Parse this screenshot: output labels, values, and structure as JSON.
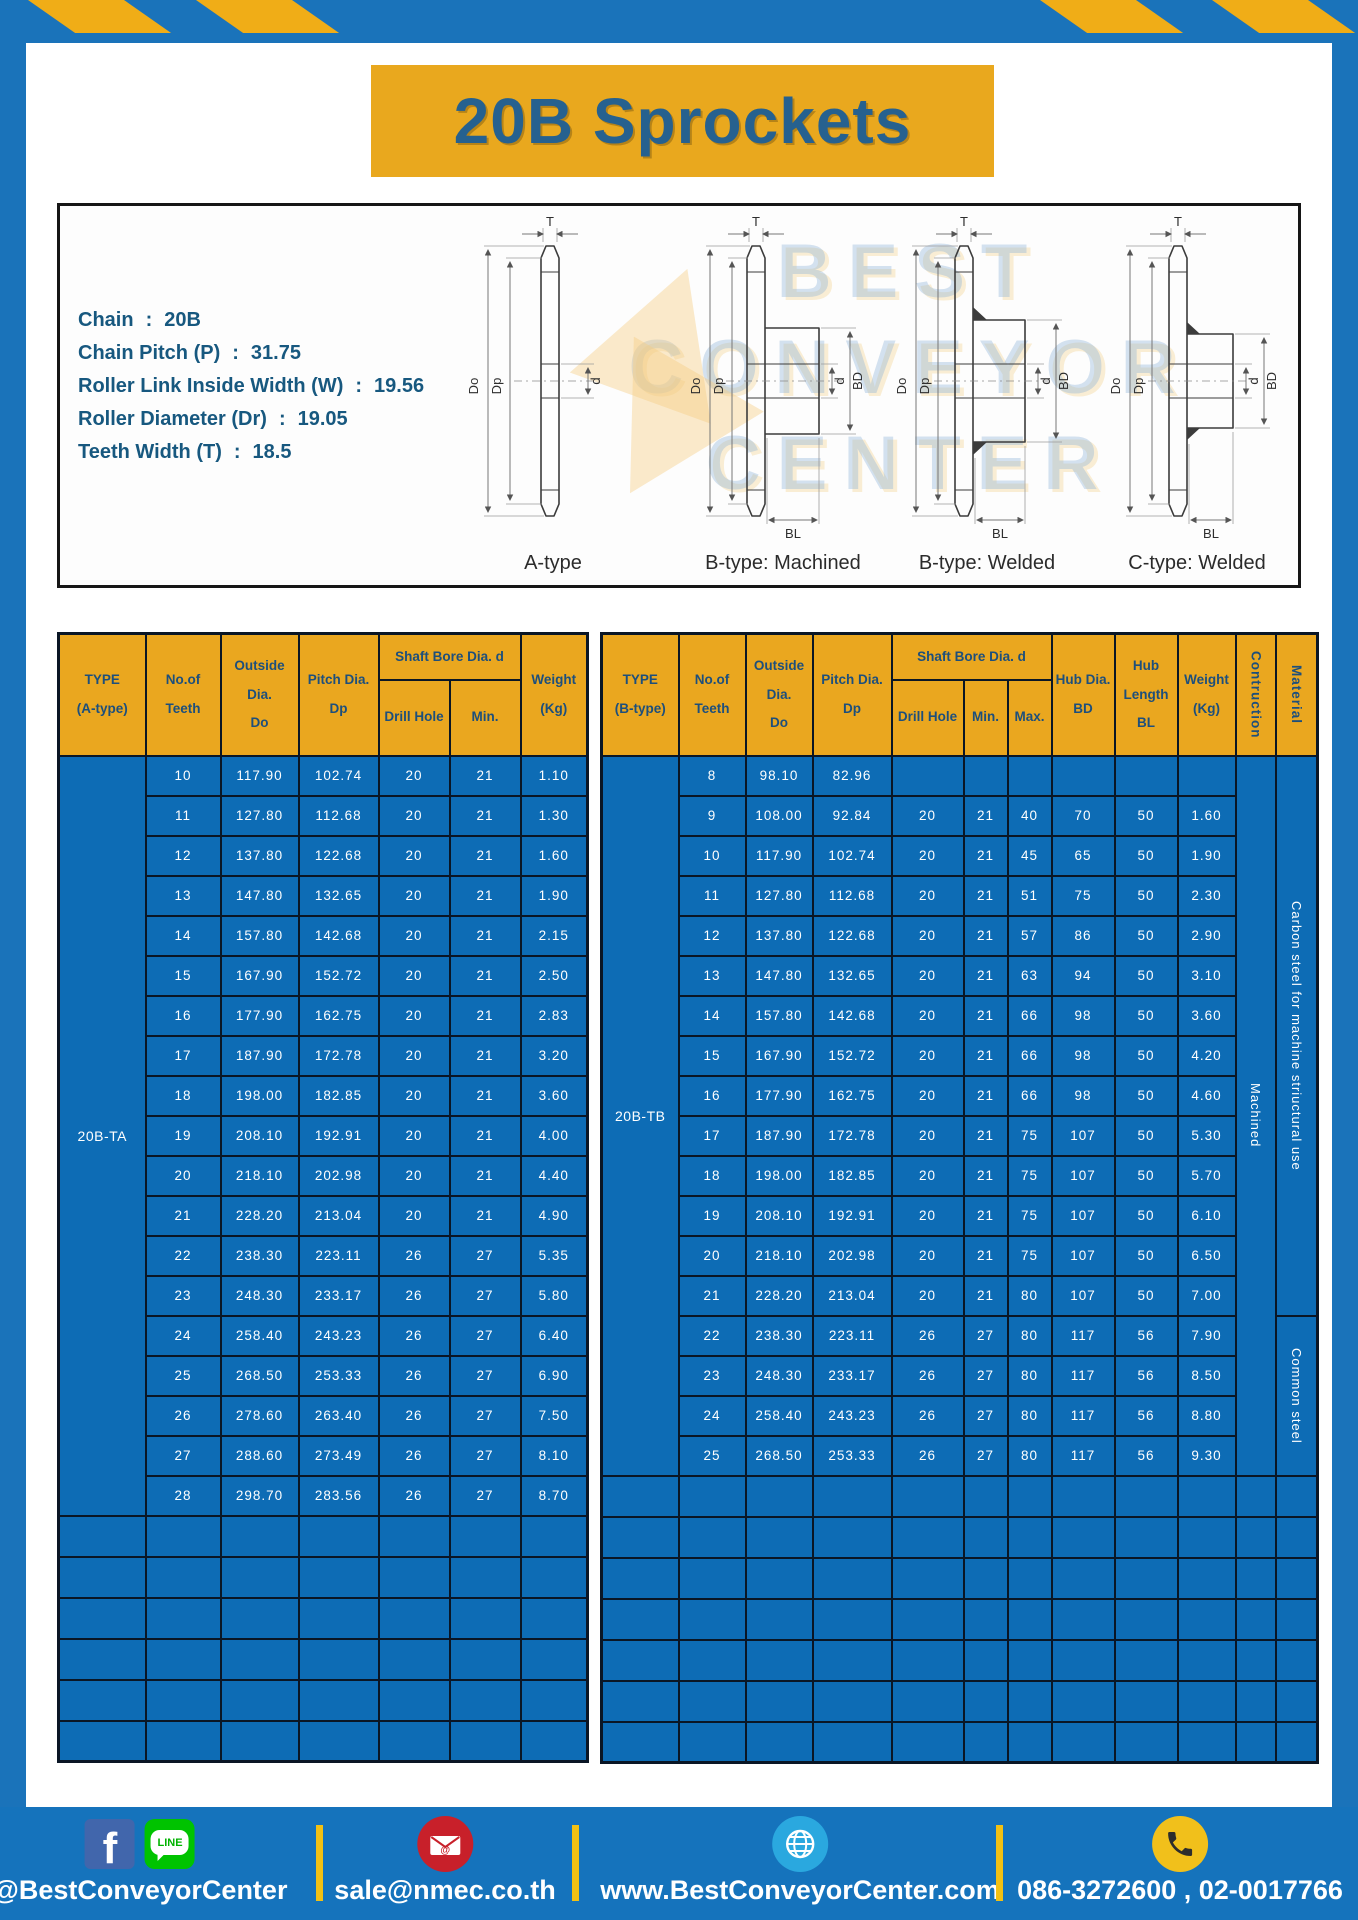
{
  "title": "20B Sprockets",
  "specs": {
    "sep": ":",
    "lines": [
      {
        "label": "Chain",
        "value": "20B"
      },
      {
        "label": "Chain Pitch (P)",
        "value": "31.75"
      },
      {
        "label": "Roller Link Inside Width (W)",
        "value": "19.56"
      },
      {
        "label": "Roller Diameter (Dr)",
        "value": "19.05"
      },
      {
        "label": "Teeth Width (T)",
        "value": "18.5"
      }
    ]
  },
  "diagram": {
    "variants": [
      {
        "label": "A-type"
      },
      {
        "label": "B-type: Machined"
      },
      {
        "label": "B-type: Welded"
      },
      {
        "label": "C-type: Welded"
      }
    ],
    "dims": {
      "t": "T",
      "do": "Do",
      "dp": "Dp",
      "d": "d",
      "bd": "BD",
      "bl": "BL"
    },
    "watermark_lines": [
      "BEST",
      "CONVEYOR",
      "CENTER"
    ]
  },
  "table_a": {
    "type_label": "20B-TA",
    "header": {
      "type": "TYPE\n(A-type)",
      "teeth": "No.of\nTeeth",
      "outside": "Outside\nDia.\nDo",
      "pitch": "Pitch Dia.\nDp",
      "shaft_bore": "Shaft Bore Dia. d",
      "drill": "Drill Hole",
      "min": "Min.",
      "weight": "Weight\n(Kg)"
    },
    "rows": [
      [
        "10",
        "117.90",
        "102.74",
        "20",
        "21",
        "1.10"
      ],
      [
        "11",
        "127.80",
        "112.68",
        "20",
        "21",
        "1.30"
      ],
      [
        "12",
        "137.80",
        "122.68",
        "20",
        "21",
        "1.60"
      ],
      [
        "13",
        "147.80",
        "132.65",
        "20",
        "21",
        "1.90"
      ],
      [
        "14",
        "157.80",
        "142.68",
        "20",
        "21",
        "2.15"
      ],
      [
        "15",
        "167.90",
        "152.72",
        "20",
        "21",
        "2.50"
      ],
      [
        "16",
        "177.90",
        "162.75",
        "20",
        "21",
        "2.83"
      ],
      [
        "17",
        "187.90",
        "172.78",
        "20",
        "21",
        "3.20"
      ],
      [
        "18",
        "198.00",
        "182.85",
        "20",
        "21",
        "3.60"
      ],
      [
        "19",
        "208.10",
        "192.91",
        "20",
        "21",
        "4.00"
      ],
      [
        "20",
        "218.10",
        "202.98",
        "20",
        "21",
        "4.40"
      ],
      [
        "21",
        "228.20",
        "213.04",
        "20",
        "21",
        "4.90"
      ],
      [
        "22",
        "238.30",
        "223.11",
        "26",
        "27",
        "5.35"
      ],
      [
        "23",
        "248.30",
        "233.17",
        "26",
        "27",
        "5.80"
      ],
      [
        "24",
        "258.40",
        "243.23",
        "26",
        "27",
        "6.40"
      ],
      [
        "25",
        "268.50",
        "253.33",
        "26",
        "27",
        "6.90"
      ],
      [
        "26",
        "278.60",
        "263.40",
        "26",
        "27",
        "7.50"
      ],
      [
        "27",
        "288.60",
        "273.49",
        "26",
        "27",
        "8.10"
      ],
      [
        "28",
        "298.70",
        "283.56",
        "26",
        "27",
        "8.70"
      ]
    ],
    "empty_rows": 6
  },
  "table_b": {
    "type_label": "20B-TB",
    "construction_label": "Machined",
    "materials": [
      {
        "label": "Carbon steel for machine striuctural use",
        "rows": 14
      },
      {
        "label": "Common steel",
        "rows": 4
      }
    ],
    "header": {
      "type": "TYPE\n(B-type)",
      "teeth": "No.of\nTeeth",
      "outside": "Outside\nDia.\nDo",
      "pitch": "Pitch Dia.\nDp",
      "shaft_bore": "Shaft Bore Dia. d",
      "drill": "Drill Hole",
      "min": "Min.",
      "max": "Max.",
      "hub_dia": "Hub Dia.\nBD",
      "hub_len": "Hub\nLength\nBL",
      "weight": "Weight\n(Kg)",
      "construction": "Contruction",
      "material": "Material"
    },
    "rows": [
      [
        "8",
        "98.10",
        "82.96",
        "",
        "",
        "",
        "",
        "",
        ""
      ],
      [
        "9",
        "108.00",
        "92.84",
        "20",
        "21",
        "40",
        "70",
        "50",
        "1.60"
      ],
      [
        "10",
        "117.90",
        "102.74",
        "20",
        "21",
        "45",
        "65",
        "50",
        "1.90"
      ],
      [
        "11",
        "127.80",
        "112.68",
        "20",
        "21",
        "51",
        "75",
        "50",
        "2.30"
      ],
      [
        "12",
        "137.80",
        "122.68",
        "20",
        "21",
        "57",
        "86",
        "50",
        "2.90"
      ],
      [
        "13",
        "147.80",
        "132.65",
        "20",
        "21",
        "63",
        "94",
        "50",
        "3.10"
      ],
      [
        "14",
        "157.80",
        "142.68",
        "20",
        "21",
        "66",
        "98",
        "50",
        "3.60"
      ],
      [
        "15",
        "167.90",
        "152.72",
        "20",
        "21",
        "66",
        "98",
        "50",
        "4.20"
      ],
      [
        "16",
        "177.90",
        "162.75",
        "20",
        "21",
        "66",
        "98",
        "50",
        "4.60"
      ],
      [
        "17",
        "187.90",
        "172.78",
        "20",
        "21",
        "75",
        "107",
        "50",
        "5.30"
      ],
      [
        "18",
        "198.00",
        "182.85",
        "20",
        "21",
        "75",
        "107",
        "50",
        "5.70"
      ],
      [
        "19",
        "208.10",
        "192.91",
        "20",
        "21",
        "75",
        "107",
        "50",
        "6.10"
      ],
      [
        "20",
        "218.10",
        "202.98",
        "20",
        "21",
        "75",
        "107",
        "50",
        "6.50"
      ],
      [
        "21",
        "228.20",
        "213.04",
        "20",
        "21",
        "80",
        "107",
        "50",
        "7.00"
      ],
      [
        "22",
        "238.30",
        "223.11",
        "26",
        "27",
        "80",
        "117",
        "56",
        "7.90"
      ],
      [
        "23",
        "248.30",
        "233.17",
        "26",
        "27",
        "80",
        "117",
        "56",
        "8.50"
      ],
      [
        "24",
        "258.40",
        "243.23",
        "26",
        "27",
        "80",
        "117",
        "56",
        "8.80"
      ],
      [
        "25",
        "268.50",
        "253.33",
        "26",
        "27",
        "80",
        "117",
        "56",
        "9.30"
      ]
    ],
    "empty_rows": 7
  },
  "footer": {
    "fb_glyph": "f",
    "line_label": "LINE",
    "at_glyph": "@",
    "social_handle": "@BestConveyorCenter",
    "email": "sale@nmec.co.th",
    "website": "www.BestConveyorCenter.com",
    "phones": "086-3272600 , 02-0017766"
  },
  "colors": {
    "frame_blue": "#1a73ba",
    "table_blue": "#0d6cb5",
    "footer_blue": "#1573bc",
    "accent_yellow": "#eaa71f",
    "stripe_yellow": "#f0ad17",
    "navy_text": "#1d4f7c",
    "border_navy": "#0a1625"
  }
}
